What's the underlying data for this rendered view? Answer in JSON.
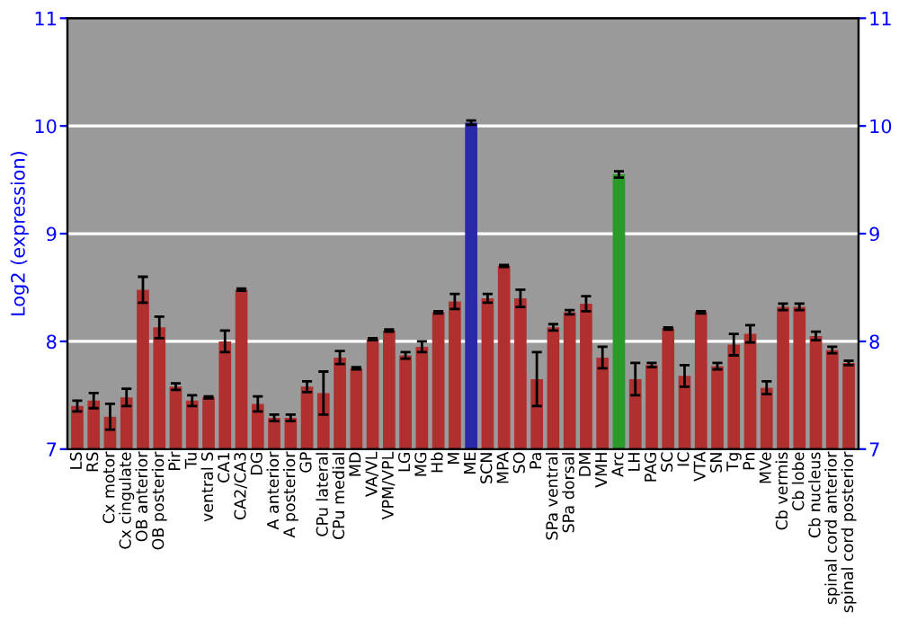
{
  "chart_data": {
    "type": "bar",
    "ylabel": "Log2 (expression)",
    "categories": [
      "LS",
      "RS",
      "Cx motor",
      "Cx cingulate",
      "OB anterior",
      "OB posterior",
      "Pir",
      "Tu",
      "ventral S",
      "CA1",
      "CA2/CA3",
      "DG",
      "A anterior",
      "A posterior",
      "GP",
      "CPu lateral",
      "CPu medial",
      "MD",
      "VA/VL",
      "VPM/VPL",
      "LG",
      "MG",
      "Hb",
      "M",
      "ME",
      "SCN",
      "MPA",
      "SO",
      "Pa",
      "SPa ventral",
      "SPa dorsal",
      "DM",
      "VMH",
      "Arc",
      "LH",
      "PAG",
      "SC",
      "IC",
      "VTA",
      "SN",
      "Tg",
      "Pn",
      "MVe",
      "Cb vermis",
      "Cb lobe",
      "Cb nucleus",
      "spinal cord anterior",
      "spinal cord posterior"
    ],
    "values": [
      7.4,
      7.45,
      7.3,
      7.48,
      8.48,
      8.13,
      7.58,
      7.45,
      7.48,
      8.0,
      8.48,
      7.42,
      7.29,
      7.29,
      7.58,
      7.52,
      7.85,
      7.75,
      8.02,
      8.1,
      7.87,
      7.95,
      8.27,
      8.37,
      10.03,
      8.4,
      8.7,
      8.4,
      7.65,
      8.13,
      8.27,
      8.35,
      7.85,
      9.55,
      7.65,
      7.78,
      8.12,
      7.68,
      8.27,
      7.77,
      7.97,
      8.07,
      7.57,
      8.32,
      8.32,
      8.05,
      7.92,
      7.8
    ],
    "errors": [
      0.05,
      0.07,
      0.12,
      0.08,
      0.12,
      0.1,
      0.03,
      0.05,
      0.01,
      0.1,
      0.01,
      0.07,
      0.03,
      0.03,
      0.05,
      0.2,
      0.06,
      0.01,
      0.01,
      0.01,
      0.03,
      0.05,
      0.01,
      0.07,
      0.02,
      0.04,
      0.01,
      0.08,
      0.25,
      0.03,
      0.02,
      0.07,
      0.1,
      0.03,
      0.15,
      0.02,
      0.01,
      0.1,
      0.01,
      0.03,
      0.1,
      0.08,
      0.06,
      0.03,
      0.03,
      0.04,
      0.03,
      0.02
    ],
    "colors": [
      "#b03030",
      "#b03030",
      "#b03030",
      "#b03030",
      "#b03030",
      "#b03030",
      "#b03030",
      "#b03030",
      "#b03030",
      "#b03030",
      "#b03030",
      "#b03030",
      "#b03030",
      "#b03030",
      "#b03030",
      "#b03030",
      "#b03030",
      "#b03030",
      "#b03030",
      "#b03030",
      "#b03030",
      "#b03030",
      "#b03030",
      "#b03030",
      "#2a2aa8",
      "#b03030",
      "#b03030",
      "#b03030",
      "#b03030",
      "#b03030",
      "#b03030",
      "#b03030",
      "#b03030",
      "#2a9a2a",
      "#b03030",
      "#b03030",
      "#b03030",
      "#b03030",
      "#b03030",
      "#b03030",
      "#b03030",
      "#b03030",
      "#b03030",
      "#b03030",
      "#b03030",
      "#b03030",
      "#b03030",
      "#b03030"
    ],
    "ylim": [
      7,
      11
    ],
    "yticks": [
      7,
      8,
      9,
      10,
      11
    ],
    "y2lim": [
      7,
      11
    ],
    "y2ticks": [
      7,
      8,
      9,
      10,
      11
    ],
    "grid": "y"
  }
}
